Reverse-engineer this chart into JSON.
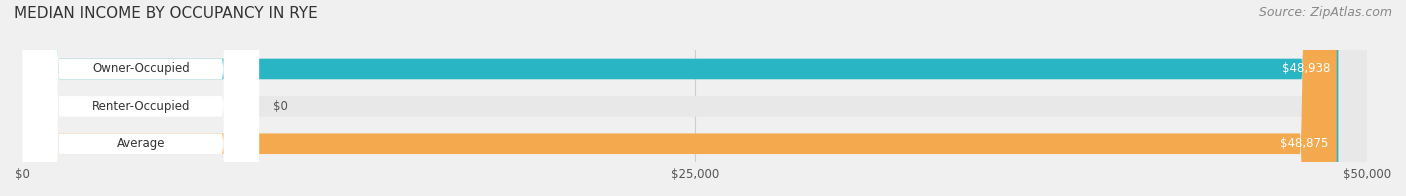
{
  "title": "MEDIAN INCOME BY OCCUPANCY IN RYE",
  "source": "Source: ZipAtlas.com",
  "categories": [
    "Owner-Occupied",
    "Renter-Occupied",
    "Average"
  ],
  "values": [
    48938,
    0,
    48875
  ],
  "bar_colors": [
    "#29b5c3",
    "#c3a8d1",
    "#f5a94e"
  ],
  "bar_labels": [
    "$48,938",
    "$0",
    "$48,875"
  ],
  "xlim": [
    0,
    50000
  ],
  "xticks": [
    0,
    25000,
    50000
  ],
  "xtick_labels": [
    "$0",
    "$25,000",
    "$50,000"
  ],
  "background_color": "#f0f0f0",
  "bar_bg_color": "#e8e8e8",
  "label_bg_color": "#ffffff",
  "title_fontsize": 11,
  "source_fontsize": 9,
  "bar_height": 0.55,
  "figsize": [
    14.06,
    1.96
  ],
  "dpi": 100
}
